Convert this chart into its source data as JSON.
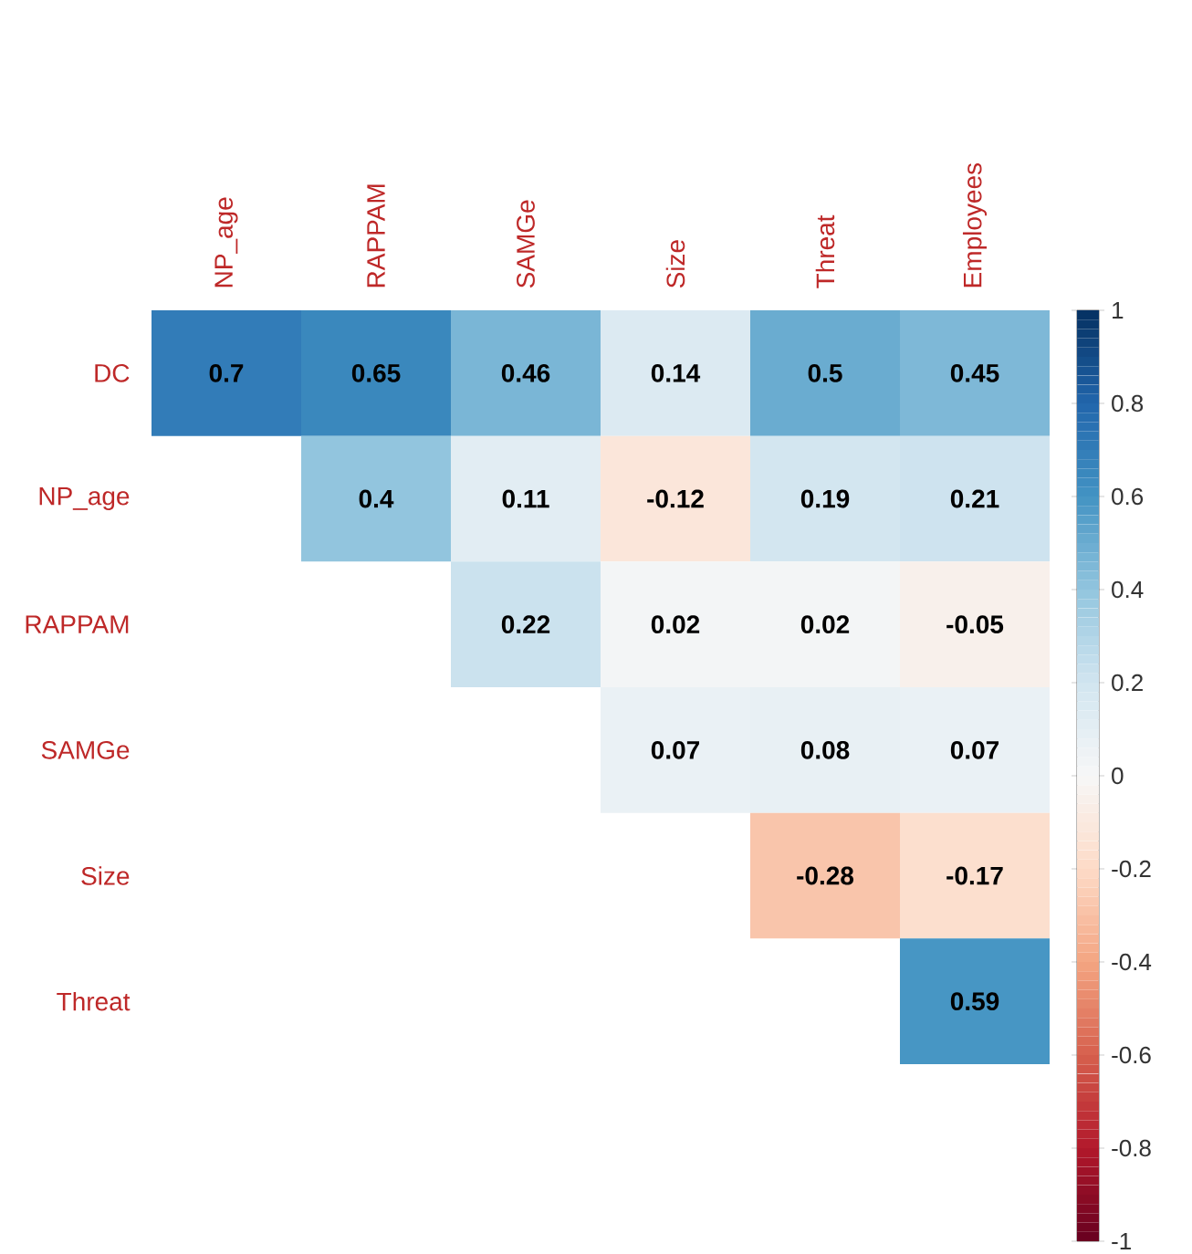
{
  "chart_data": {
    "type": "heatmap",
    "categories": [
      "NP_age",
      "RAPPAM",
      "SAMGe",
      "Size",
      "Threat",
      "Employees"
    ],
    "y_categories": [
      "DC",
      "NP_age",
      "RAPPAM",
      "SAMGe",
      "Size",
      "Threat"
    ],
    "cells": [
      [
        0.7,
        0.65,
        0.46,
        0.14,
        0.5,
        0.45
      ],
      [
        null,
        0.4,
        0.11,
        -0.12,
        0.19,
        0.21
      ],
      [
        null,
        null,
        0.22,
        0.02,
        0.02,
        -0.05
      ],
      [
        null,
        null,
        null,
        0.07,
        0.08,
        0.07
      ],
      [
        null,
        null,
        null,
        null,
        -0.28,
        -0.17
      ],
      [
        null,
        null,
        null,
        null,
        null,
        0.59
      ]
    ],
    "clim": [
      -1,
      1
    ],
    "cticks": [
      -1,
      -0.8,
      -0.6,
      -0.4,
      -0.2,
      0,
      0.2,
      0.4,
      0.6,
      0.8,
      1
    ],
    "data_labels": true
  }
}
